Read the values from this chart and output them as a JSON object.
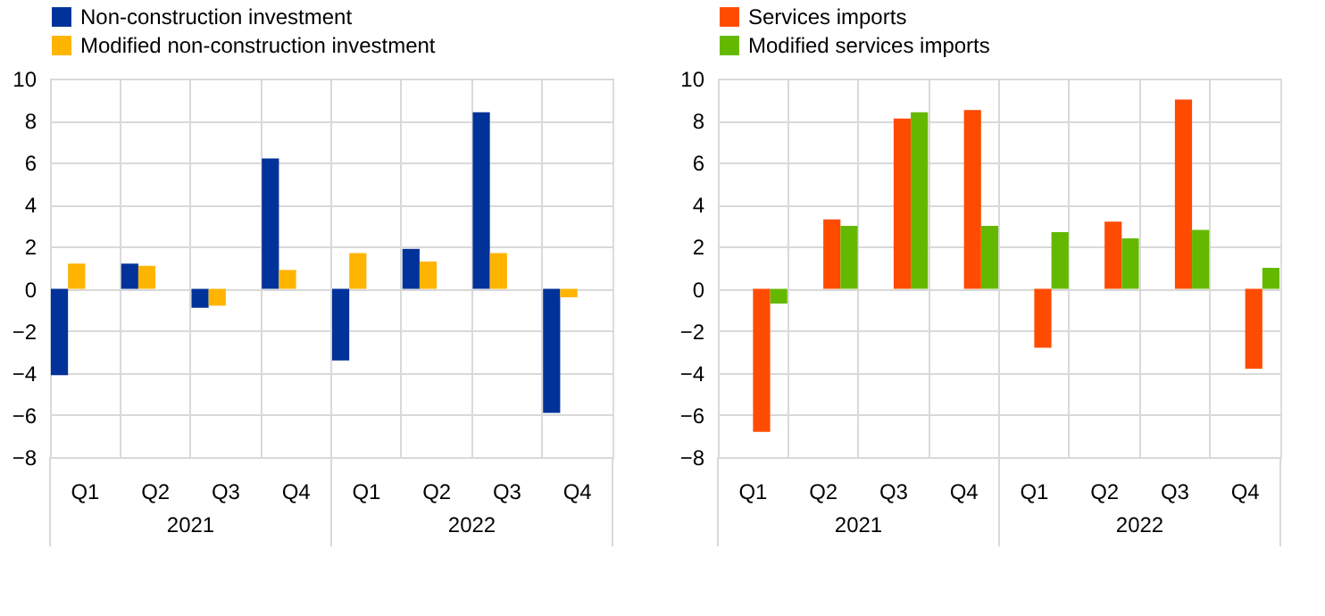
{
  "chart_data": [
    {
      "type": "bar",
      "categories": [
        "Q1",
        "Q2",
        "Q3",
        "Q4",
        "Q1",
        "Q2",
        "Q3",
        "Q4"
      ],
      "series": [
        {
          "name": "Non-construction investment",
          "color": "#003299",
          "values": [
            -4.1,
            1.2,
            -0.9,
            6.2,
            -3.4,
            1.9,
            8.4,
            -5.9
          ]
        },
        {
          "name": "Modified non-construction investment",
          "color": "#ffb400",
          "values": [
            1.2,
            1.1,
            -0.8,
            0.9,
            1.7,
            1.3,
            1.7,
            -0.4
          ]
        }
      ],
      "ylim": [
        -8,
        10
      ],
      "yticks": [
        -8,
        -6,
        -4,
        -2,
        0,
        2,
        4,
        6,
        8,
        10
      ],
      "grid": true,
      "legend": "top left",
      "annotations": [
        "2021",
        "2022"
      ]
    },
    {
      "type": "bar",
      "categories": [
        "Q1",
        "Q2",
        "Q3",
        "Q4",
        "Q1",
        "Q2",
        "Q3",
        "Q4"
      ],
      "series": [
        {
          "name": "Services imports",
          "color": "#ff4b00",
          "values": [
            -6.8,
            3.3,
            8.1,
            8.5,
            -2.8,
            3.2,
            9.0,
            -3.8
          ]
        },
        {
          "name": "Modified services imports",
          "color": "#65b800",
          "values": [
            -0.7,
            3.0,
            8.4,
            3.0,
            2.7,
            2.4,
            2.8,
            1.0
          ]
        }
      ],
      "ylim": [
        -8,
        10
      ],
      "yticks": [
        -8,
        -6,
        -4,
        -2,
        0,
        2,
        4,
        6,
        8,
        10
      ],
      "grid": true,
      "legend": "top left",
      "annotations": [
        "2021",
        "2022"
      ]
    }
  ]
}
